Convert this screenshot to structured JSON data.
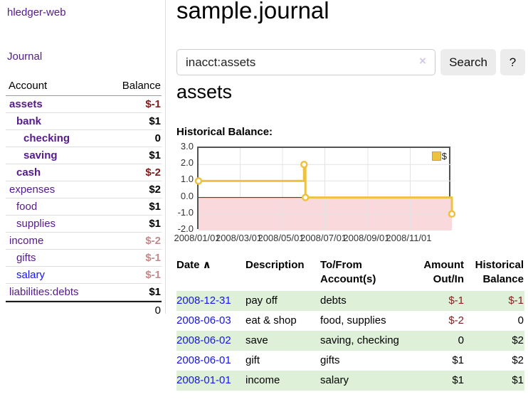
{
  "app": {
    "brand": "hledger-web",
    "nav_journal": "Journal"
  },
  "sidebar": {
    "columns": {
      "account": "Account",
      "balance": "Balance"
    },
    "accounts": [
      {
        "name": "assets",
        "depth": 1,
        "bold": true,
        "blue": false,
        "balance": "$-1",
        "balance_class": "neg-strong"
      },
      {
        "name": "bank",
        "depth": 2,
        "bold": true,
        "blue": false,
        "balance": "$1",
        "balance_class": ""
      },
      {
        "name": "checking",
        "depth": 3,
        "bold": true,
        "blue": false,
        "balance": "0",
        "balance_class": ""
      },
      {
        "name": "saving",
        "depth": 3,
        "bold": true,
        "blue": false,
        "balance": "$1",
        "balance_class": ""
      },
      {
        "name": "cash",
        "depth": 2,
        "bold": true,
        "blue": false,
        "balance": "$-2",
        "balance_class": "neg-strong"
      },
      {
        "name": "expenses",
        "depth": 1,
        "bold": false,
        "blue": false,
        "balance": "$2",
        "balance_class": ""
      },
      {
        "name": "food",
        "depth": 2,
        "bold": false,
        "blue": false,
        "balance": "$1",
        "balance_class": ""
      },
      {
        "name": "supplies",
        "depth": 2,
        "bold": false,
        "blue": false,
        "balance": "$1",
        "balance_class": ""
      },
      {
        "name": "income",
        "depth": 1,
        "bold": false,
        "blue": false,
        "balance": "$-2",
        "balance_class": "neg-soft"
      },
      {
        "name": "gifts",
        "depth": 2,
        "bold": false,
        "blue": false,
        "balance": "$-1",
        "balance_class": "neg-soft"
      },
      {
        "name": "salary",
        "depth": 2,
        "bold": false,
        "blue": true,
        "balance": "$-1",
        "balance_class": "neg-soft"
      },
      {
        "name": "liabilities:debts",
        "depth": 1,
        "bold": false,
        "blue": false,
        "balance": "$1",
        "balance_class": ""
      }
    ],
    "total": "0"
  },
  "header": {
    "title": "sample.journal"
  },
  "search": {
    "value": "inacct:assets",
    "clear_icon": "×",
    "button_label": "Search",
    "help_label": "?"
  },
  "account_page": {
    "title": "assets",
    "chart_label": "Historical Balance:"
  },
  "chart_data": {
    "type": "line",
    "step": true,
    "series": [
      {
        "name": "$",
        "color": "#EDC240",
        "points": [
          [
            "2008-01-01",
            1.0
          ],
          [
            "2008-06-01",
            2.0
          ],
          [
            "2008-06-03",
            0.0
          ],
          [
            "2008-12-31",
            -1.0
          ]
        ]
      }
    ],
    "x_range": [
      "2008-01-01",
      "2008-12-31"
    ],
    "ylim": [
      -2.0,
      3.0
    ],
    "yticks": [
      "3.0",
      "2.0",
      "1.0",
      "0.0",
      "-1.0",
      "-2.0"
    ],
    "ytick_values": [
      3.0,
      2.0,
      1.0,
      0.0,
      -1.0,
      -2.0
    ],
    "xticks": [
      "2008/01/01",
      "2008/03/01",
      "2008/05/01",
      "2008/07/01",
      "2008/09/01",
      "2008/11/01"
    ],
    "xtick_dates": [
      "2008-01-01",
      "2008-03-01",
      "2008-05-01",
      "2008-07-01",
      "2008-09-01",
      "2008-11-01"
    ],
    "grid": true,
    "negative_fill": "#f9d9db",
    "zero_line_color": "#8b0000",
    "grid_color": "#e4e4e4",
    "legend": {
      "label": "$",
      "position": "top-right"
    }
  },
  "register": {
    "headers": [
      {
        "lines": [
          "Date"
        ],
        "align": "left",
        "sort_icon": "∧"
      },
      {
        "lines": [
          "Description"
        ],
        "align": "left"
      },
      {
        "lines": [
          "To/From",
          "Account(s)"
        ],
        "align": "left"
      },
      {
        "lines": [
          "Amount",
          "Out/In"
        ],
        "align": "right"
      },
      {
        "lines": [
          "Historical",
          "Balance"
        ],
        "align": "right"
      }
    ],
    "rows": [
      {
        "date": "2008-12-31",
        "description": "pay off",
        "accounts": "debts",
        "amount": "$-1",
        "amount_neg": true,
        "balance": "$-1",
        "balance_neg": true,
        "striped": true
      },
      {
        "date": "2008-06-03",
        "description": "eat & shop",
        "accounts": "food, supplies",
        "amount": "$-2",
        "amount_neg": true,
        "balance": "0",
        "balance_neg": false,
        "striped": false
      },
      {
        "date": "2008-06-02",
        "description": "save",
        "accounts": "saving, checking",
        "amount": "0",
        "amount_neg": false,
        "balance": "$2",
        "balance_neg": false,
        "striped": true
      },
      {
        "date": "2008-06-01",
        "description": "gift",
        "accounts": "gifts",
        "amount": "$1",
        "amount_neg": false,
        "balance": "$2",
        "balance_neg": false,
        "striped": false
      },
      {
        "date": "2008-01-01",
        "description": "income",
        "accounts": "salary",
        "amount": "$1",
        "amount_neg": false,
        "balance": "$1",
        "balance_neg": false,
        "striped": true
      }
    ]
  }
}
